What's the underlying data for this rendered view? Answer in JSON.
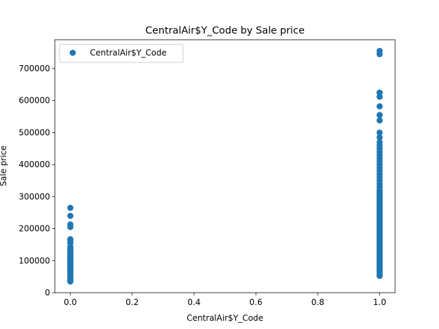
{
  "chart_data": {
    "type": "scatter",
    "title": "CentralAir$Y_Code by Sale price",
    "xlabel": "CentralAir$Y_Code",
    "ylabel": "Sale price",
    "xlim": [
      -0.05,
      1.05
    ],
    "ylim": [
      0,
      790000
    ],
    "xticks": [
      0.0,
      0.2,
      0.4,
      0.6,
      0.8,
      1.0
    ],
    "xtick_labels": [
      "0.0",
      "0.2",
      "0.4",
      "0.6",
      "0.8",
      "1.0"
    ],
    "yticks": [
      0,
      100000,
      200000,
      300000,
      400000,
      500000,
      600000,
      700000
    ],
    "ytick_labels": [
      "0",
      "100000",
      "200000",
      "300000",
      "400000",
      "500000",
      "600000",
      "700000"
    ],
    "grid": false,
    "legend_position": "top-left",
    "color": "#1f77b4",
    "series": [
      {
        "name": "CentralAir$Y_Code",
        "x": [
          0,
          0,
          0,
          0,
          0,
          0,
          0,
          0,
          0,
          0,
          0,
          0,
          0,
          0,
          0,
          0,
          0,
          0,
          0,
          0,
          0,
          0,
          0,
          0,
          0,
          0,
          0,
          0,
          0,
          0,
          0,
          0,
          0,
          0,
          0,
          1,
          1,
          1,
          1,
          1,
          1,
          1,
          1,
          1,
          1,
          1,
          1,
          1,
          1,
          1,
          1,
          1,
          1,
          1,
          1,
          1,
          1,
          1,
          1,
          1,
          1,
          1,
          1,
          1,
          1,
          1,
          1,
          1,
          1,
          1,
          1,
          1,
          1,
          1,
          1,
          1,
          1,
          1,
          1,
          1,
          1,
          1,
          1,
          1,
          1,
          1,
          1,
          1,
          1,
          1,
          1,
          1,
          1,
          1,
          1,
          1,
          1,
          1,
          1,
          1,
          1,
          1,
          1,
          1,
          1,
          1,
          1,
          1,
          1,
          1,
          1,
          1,
          1
        ],
        "y": [
          34900,
          37900,
          40000,
          45000,
          52000,
          55000,
          60000,
          62000,
          68000,
          72000,
          76000,
          80000,
          82000,
          85000,
          87000,
          90000,
          92000,
          95000,
          98000,
          100000,
          103000,
          106000,
          110000,
          113000,
          116000,
          120000,
          124000,
          128000,
          132000,
          137000,
          143000,
          155000,
          163000,
          167000,
          205000,
          52500,
          58000,
          64000,
          70000,
          75000,
          80000,
          85000,
          90000,
          95000,
          100000,
          105000,
          110000,
          115000,
          120000,
          125000,
          130000,
          135000,
          140000,
          145000,
          150000,
          155000,
          160000,
          165000,
          170000,
          175000,
          180000,
          185000,
          190000,
          195000,
          200000,
          205000,
          210000,
          215000,
          220000,
          225000,
          230000,
          235000,
          240000,
          245000,
          250000,
          255000,
          260000,
          265000,
          270000,
          275000,
          280000,
          285000,
          290000,
          295000,
          300000,
          305000,
          310000,
          315000,
          320000,
          330000,
          340000,
          350000,
          360000,
          370000,
          380000,
          390000,
          400000,
          410000,
          420000,
          430000,
          440000,
          450000,
          460000,
          470000,
          485000,
          500000,
          538000,
          555000,
          582000,
          612000,
          625000,
          745000,
          755000
        ]
      },
      {
        "name": "",
        "x": [
          0,
          0,
          0
        ],
        "y": [
          213000,
          240000,
          265000
        ]
      }
    ]
  }
}
